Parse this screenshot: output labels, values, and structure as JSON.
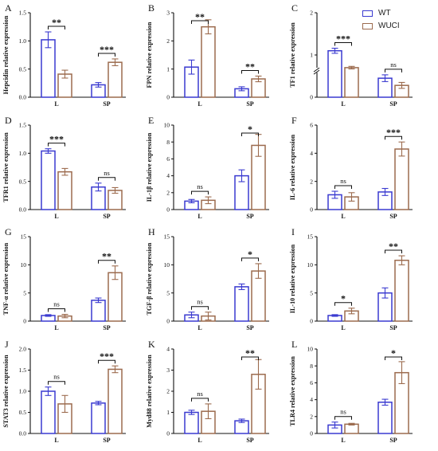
{
  "legend": {
    "wt_label": "WT",
    "wuci_label": "WUCI"
  },
  "colors": {
    "wt": "#3a3ad0",
    "wuci": "#9c6b4e",
    "axis": "#111111"
  },
  "chart_data": [
    {
      "panel": "A",
      "type": "bar",
      "ylabel": "Hepcidin relative expression",
      "categories": [
        "L",
        "SP"
      ],
      "ylim": [
        0,
        1.5
      ],
      "yticks": [
        0,
        0.5,
        1.0,
        1.5
      ],
      "tick_labels": [
        "0.0",
        "0.5",
        "1.0",
        "1.5"
      ],
      "series": [
        {
          "name": "WT",
          "values": [
            1.02,
            0.22
          ],
          "errors": [
            0.14,
            0.04
          ]
        },
        {
          "name": "WUCI",
          "values": [
            0.41,
            0.62
          ],
          "errors": [
            0.07,
            0.06
          ]
        }
      ],
      "significance": [
        "**",
        "***"
      ]
    },
    {
      "panel": "B",
      "type": "bar",
      "ylabel": "FPN relative expression",
      "categories": [
        "L",
        "SP"
      ],
      "ylim": [
        0,
        3
      ],
      "yticks": [
        0,
        1,
        2,
        3
      ],
      "tick_labels": [
        "0",
        "1",
        "2",
        "3"
      ],
      "series": [
        {
          "name": "WT",
          "values": [
            1.07,
            0.3
          ],
          "errors": [
            0.25,
            0.07
          ]
        },
        {
          "name": "WUCI",
          "values": [
            2.5,
            0.65
          ],
          "errors": [
            0.25,
            0.1
          ]
        }
      ],
      "significance": [
        "**",
        "**"
      ]
    },
    {
      "panel": "C",
      "type": "bar",
      "ylabel": "TF1 relative expression",
      "categories": [
        "L",
        "SP"
      ],
      "axis_break": true,
      "ylim": [
        0,
        2
      ],
      "yticks": [
        0,
        1,
        2
      ],
      "tick_labels": [
        "0",
        "1",
        "2"
      ],
      "series": [
        {
          "name": "WT",
          "values": [
            1.1,
            0.45
          ],
          "errors": [
            0.06,
            0.08
          ]
        },
        {
          "name": "WUCI",
          "values": [
            0.7,
            0.28
          ],
          "errors": [
            0.03,
            0.07
          ]
        }
      ],
      "significance": [
        "***",
        "ns"
      ]
    },
    {
      "panel": "D",
      "type": "bar",
      "ylabel": "TFR1 relative expression",
      "categories": [
        "L",
        "SP"
      ],
      "ylim": [
        0,
        1.5
      ],
      "yticks": [
        0,
        0.5,
        1.0,
        1.5
      ],
      "tick_labels": [
        "0.0",
        "0.5",
        "1.0",
        "1.5"
      ],
      "series": [
        {
          "name": "WT",
          "values": [
            1.04,
            0.4
          ],
          "errors": [
            0.04,
            0.07
          ]
        },
        {
          "name": "WUCI",
          "values": [
            0.67,
            0.34
          ],
          "errors": [
            0.06,
            0.05
          ]
        }
      ],
      "significance": [
        "***",
        "ns"
      ]
    },
    {
      "panel": "E",
      "type": "bar",
      "ylabel": "IL-1β relative expression",
      "categories": [
        "L",
        "SP"
      ],
      "ylim": [
        0,
        10
      ],
      "yticks": [
        0,
        2,
        4,
        6,
        8,
        10
      ],
      "tick_labels": [
        "0",
        "2",
        "4",
        "6",
        "8",
        "10"
      ],
      "series": [
        {
          "name": "WT",
          "values": [
            1.0,
            4.0
          ],
          "errors": [
            0.2,
            0.7
          ]
        },
        {
          "name": "WUCI",
          "values": [
            1.1,
            7.6
          ],
          "errors": [
            0.4,
            1.3
          ]
        }
      ],
      "significance": [
        "ns",
        "*"
      ]
    },
    {
      "panel": "F",
      "type": "bar",
      "ylabel": "IL-6 relative expression",
      "categories": [
        "L",
        "SP"
      ],
      "ylim": [
        0,
        6
      ],
      "yticks": [
        0,
        2,
        4,
        6
      ],
      "tick_labels": [
        "0",
        "2",
        "4",
        "6"
      ],
      "series": [
        {
          "name": "WT",
          "values": [
            1.05,
            1.25
          ],
          "errors": [
            0.25,
            0.25
          ]
        },
        {
          "name": "WUCI",
          "values": [
            0.9,
            4.3
          ],
          "errors": [
            0.3,
            0.5
          ]
        }
      ],
      "significance": [
        "ns",
        "***"
      ]
    },
    {
      "panel": "G",
      "type": "bar",
      "ylabel": "TNF-α relative expression",
      "categories": [
        "L",
        "SP"
      ],
      "ylim": [
        0,
        15
      ],
      "yticks": [
        0,
        5,
        10,
        15
      ],
      "tick_labels": [
        "0",
        "5",
        "10",
        "15"
      ],
      "series": [
        {
          "name": "WT",
          "values": [
            1.0,
            3.7
          ],
          "errors": [
            0.15,
            0.4
          ]
        },
        {
          "name": "WUCI",
          "values": [
            0.9,
            8.6
          ],
          "errors": [
            0.3,
            1.2
          ]
        }
      ],
      "significance": [
        "ns",
        "**"
      ]
    },
    {
      "panel": "H",
      "type": "bar",
      "ylabel": "TGF-β relative expression",
      "categories": [
        "L",
        "SP"
      ],
      "ylim": [
        0,
        15
      ],
      "yticks": [
        0,
        5,
        10,
        15
      ],
      "tick_labels": [
        "0",
        "5",
        "10",
        "15"
      ],
      "series": [
        {
          "name": "WT",
          "values": [
            1.1,
            6.1
          ],
          "errors": [
            0.5,
            0.5
          ]
        },
        {
          "name": "WUCI",
          "values": [
            0.9,
            8.9
          ],
          "errors": [
            0.7,
            1.3
          ]
        }
      ],
      "significance": [
        "ns",
        "*"
      ]
    },
    {
      "panel": "I",
      "type": "bar",
      "ylabel": "IL-10 relative expression",
      "categories": [
        "L",
        "SP"
      ],
      "ylim": [
        0,
        15
      ],
      "yticks": [
        0,
        5,
        10,
        15
      ],
      "tick_labels": [
        "0",
        "5",
        "10",
        "15"
      ],
      "series": [
        {
          "name": "WT",
          "values": [
            1.0,
            5.0
          ],
          "errors": [
            0.15,
            0.9
          ]
        },
        {
          "name": "WUCI",
          "values": [
            1.8,
            10.8
          ],
          "errors": [
            0.5,
            0.8
          ]
        }
      ],
      "significance": [
        "*",
        "**"
      ]
    },
    {
      "panel": "J",
      "type": "bar",
      "ylabel": "STAT3 relative expression",
      "categories": [
        "L",
        "SP"
      ],
      "ylim": [
        0,
        2.0
      ],
      "yticks": [
        0,
        0.5,
        1.0,
        1.5,
        2.0
      ],
      "tick_labels": [
        "0.0",
        "0.5",
        "1.0",
        "1.5",
        "2.0"
      ],
      "series": [
        {
          "name": "WT",
          "values": [
            1.0,
            0.72
          ],
          "errors": [
            0.1,
            0.04
          ]
        },
        {
          "name": "WUCI",
          "values": [
            0.7,
            1.52
          ],
          "errors": [
            0.2,
            0.08
          ]
        }
      ],
      "significance": [
        "ns",
        "***"
      ]
    },
    {
      "panel": "K",
      "type": "bar",
      "ylabel": "Myd88 relative expression",
      "categories": [
        "L",
        "SP"
      ],
      "ylim": [
        0,
        4
      ],
      "yticks": [
        0,
        1,
        2,
        3,
        4
      ],
      "tick_labels": [
        "0",
        "1",
        "2",
        "3",
        "4"
      ],
      "series": [
        {
          "name": "WT",
          "values": [
            1.0,
            0.6
          ],
          "errors": [
            0.1,
            0.08
          ]
        },
        {
          "name": "WUCI",
          "values": [
            1.05,
            2.8
          ],
          "errors": [
            0.35,
            0.7
          ]
        }
      ],
      "significance": [
        "ns",
        "**"
      ]
    },
    {
      "panel": "L",
      "type": "bar",
      "ylabel": "TLR4 relative expression",
      "categories": [
        "L",
        "SP"
      ],
      "ylim": [
        0,
        10
      ],
      "yticks": [
        0,
        2,
        4,
        6,
        8,
        10
      ],
      "tick_labels": [
        "0",
        "2",
        "4",
        "6",
        "8",
        "10"
      ],
      "series": [
        {
          "name": "WT",
          "values": [
            1.0,
            3.7
          ],
          "errors": [
            0.35,
            0.35
          ]
        },
        {
          "name": "WUCI",
          "values": [
            1.1,
            7.2
          ],
          "errors": [
            0.1,
            1.3
          ]
        }
      ],
      "significance": [
        "ns",
        "*"
      ]
    }
  ]
}
